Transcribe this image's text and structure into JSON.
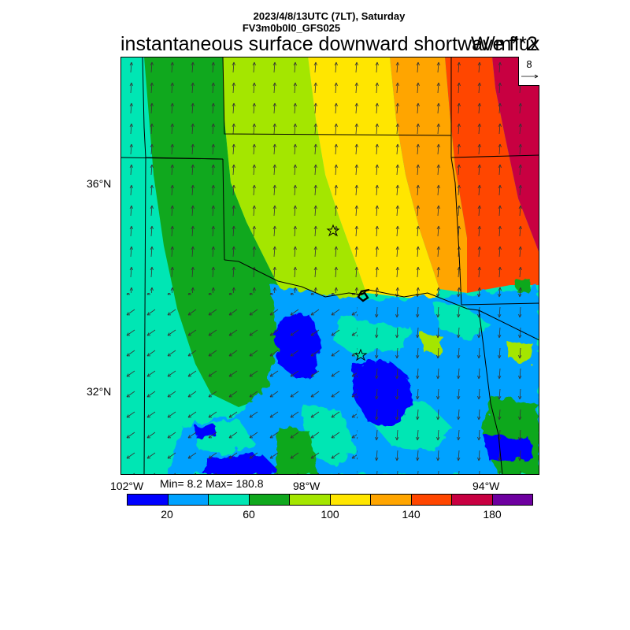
{
  "header": {
    "line1": "2023/4/8/13UTC (7LT), Saturday",
    "line2": "FV3m0b0l0_GFS025"
  },
  "title": "instantaneous surface downward shortwave flux",
  "units": "W/m**2",
  "reference_vector": {
    "label": "8"
  },
  "axes": {
    "lon_labels": [
      "102°W",
      "98°W",
      "94°W"
    ],
    "lat_labels": [
      "36°N",
      "32°N"
    ]
  },
  "stats": {
    "text": "Min= 8.2 Max= 180.8",
    "min": 8.2,
    "max": 180.8
  },
  "colorbar": {
    "colors": [
      "#0000ff",
      "#00a2ff",
      "#00e6b4",
      "#10a81e",
      "#a4e600",
      "#ffe600",
      "#ffa500",
      "#ff4600",
      "#c80041",
      "#6e00a0"
    ],
    "boundaries": [
      0,
      20,
      40,
      60,
      80,
      100,
      120,
      140,
      160,
      180,
      200
    ],
    "labels": [
      "20",
      "60",
      "100",
      "140",
      "180"
    ]
  },
  "markers": [
    {
      "name": "star-marker-1",
      "lon": -97.5,
      "lat": 35.3
    },
    {
      "name": "star-marker-2",
      "lon": -97.1,
      "lat": 32.8
    }
  ]
}
